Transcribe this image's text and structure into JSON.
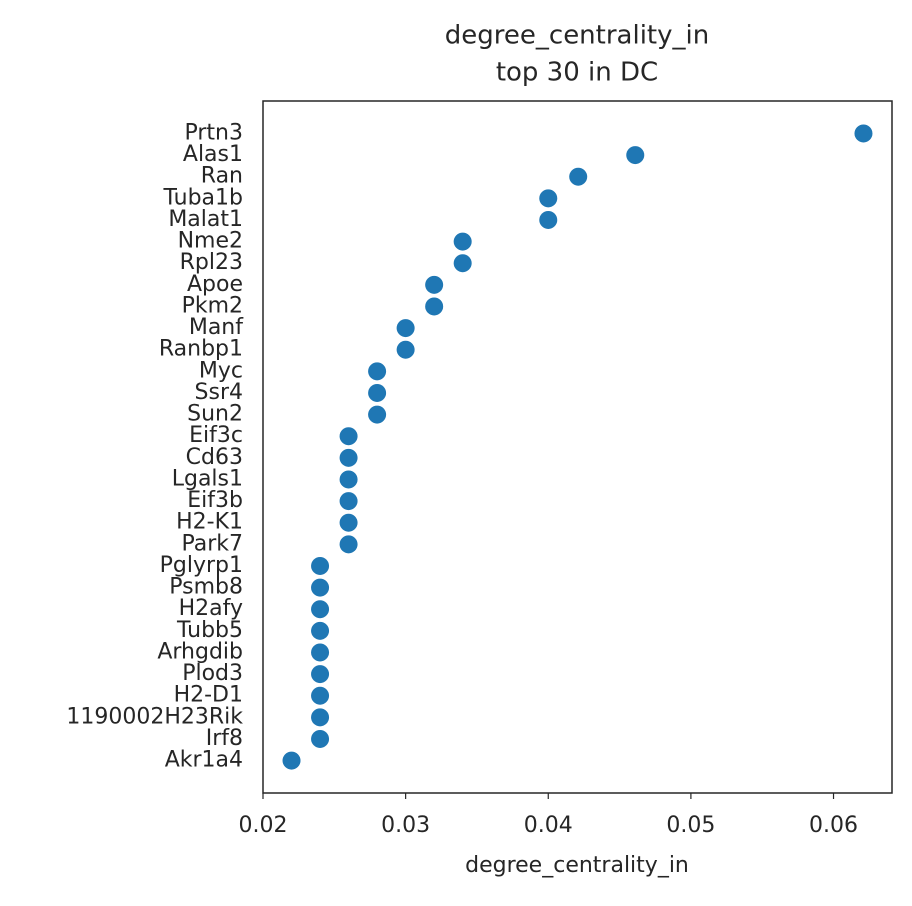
{
  "chart_data": {
    "type": "scatter",
    "title": "degree_centrality_in",
    "subtitle": "top 30 in DC",
    "xlabel": "degree_centrality_in",
    "categories": [
      "Prtn3",
      "Alas1",
      "Ran",
      "Tuba1b",
      "Malat1",
      "Nme2",
      "Rpl23",
      "Apoe",
      "Pkm2",
      "Manf",
      "Ranbp1",
      "Myc",
      "Ssr4",
      "Sun2",
      "Eif3c",
      "Cd63",
      "Lgals1",
      "Eif3b",
      "H2-K1",
      "Park7",
      "Pglyrp1",
      "Psmb8",
      "H2afy",
      "Tubb5",
      "Arhgdib",
      "Plod3",
      "H2-D1",
      "1190002H23Rik",
      "Irf8",
      "Akr1a4"
    ],
    "values": [
      0.0621,
      0.0461,
      0.0421,
      0.04,
      0.04,
      0.034,
      0.034,
      0.032,
      0.032,
      0.03,
      0.03,
      0.028,
      0.028,
      0.028,
      0.026,
      0.026,
      0.026,
      0.026,
      0.026,
      0.026,
      0.024,
      0.024,
      0.024,
      0.024,
      0.024,
      0.024,
      0.024,
      0.024,
      0.024,
      0.022
    ],
    "color": "#1f77b4",
    "xlim": [
      0.02,
      0.0641
    ],
    "xticks": [
      {
        "value": 0.02,
        "label": "0.02"
      },
      {
        "value": 0.03,
        "label": "0.03"
      },
      {
        "value": 0.04,
        "label": "0.04"
      },
      {
        "value": 0.05,
        "label": "0.05"
      },
      {
        "value": 0.06,
        "label": "0.06"
      }
    ],
    "grid": false
  }
}
